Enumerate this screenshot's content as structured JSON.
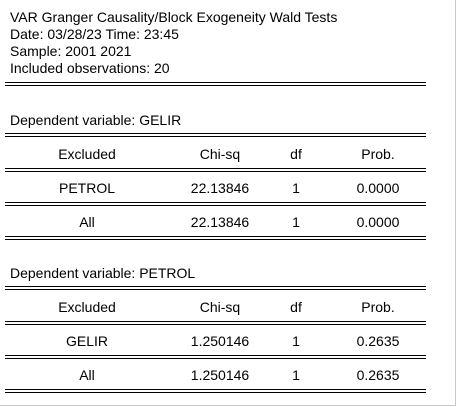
{
  "header": {
    "title": "VAR Granger Causality/Block Exogeneity Wald Tests",
    "datetime": "Date: 03/28/23   Time: 23:45",
    "sample": "Sample: 2001 2021",
    "observations": "Included observations: 20"
  },
  "columns": [
    "Excluded",
    "Chi-sq",
    "df",
    "Prob."
  ],
  "blocks": [
    {
      "title": "Dependent variable: GELIR",
      "rows": [
        [
          "PETROL",
          "22.13846",
          "1",
          "0.0000"
        ],
        [
          "All",
          "22.13846",
          "1",
          "0.0000"
        ]
      ]
    },
    {
      "title": "Dependent variable: PETROL",
      "rows": [
        [
          "GELIR",
          "1.250146",
          "1",
          "0.2635"
        ],
        [
          "All",
          "1.250146",
          "1",
          "0.2635"
        ]
      ]
    }
  ]
}
